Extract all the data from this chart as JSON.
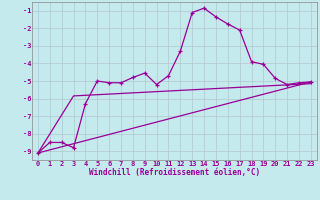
{
  "xlabel": "Windchill (Refroidissement éolien,°C)",
  "background_color": "#c5eaed",
  "line_color": "#990099",
  "grid_color": "#b0c8cc",
  "xlim": [
    -0.5,
    23.5
  ],
  "ylim": [
    -9.5,
    -0.5
  ],
  "yticks": [
    -9,
    -8,
    -7,
    -6,
    -5,
    -4,
    -3,
    -2,
    -1
  ],
  "xticks": [
    0,
    1,
    2,
    3,
    4,
    5,
    6,
    7,
    8,
    9,
    10,
    11,
    12,
    13,
    14,
    15,
    16,
    17,
    18,
    19,
    20,
    21,
    22,
    23
  ],
  "line1_x": [
    0,
    1,
    2,
    3,
    4,
    5,
    6,
    7,
    8,
    9,
    10,
    11,
    12,
    13,
    14,
    15,
    16,
    17,
    18,
    19,
    20,
    21,
    22,
    23
  ],
  "line1_y": [
    -9.1,
    -8.5,
    -8.5,
    -8.8,
    -6.3,
    -5.0,
    -5.1,
    -5.1,
    -4.8,
    -4.55,
    -5.2,
    -4.7,
    -3.3,
    -1.1,
    -0.85,
    -1.35,
    -1.75,
    -2.1,
    -3.9,
    -4.05,
    -4.85,
    -5.2,
    -5.1,
    -5.05
  ],
  "line2_x": [
    0,
    3,
    23
  ],
  "line2_y": [
    -9.1,
    -5.85,
    -5.15
  ],
  "line3_x": [
    0,
    23
  ],
  "line3_y": [
    -9.1,
    -5.05
  ],
  "marker_style": "+",
  "marker_size": 3.5,
  "line_width": 0.9,
  "axis_fontsize": 5.5,
  "tick_fontsize": 5.0
}
